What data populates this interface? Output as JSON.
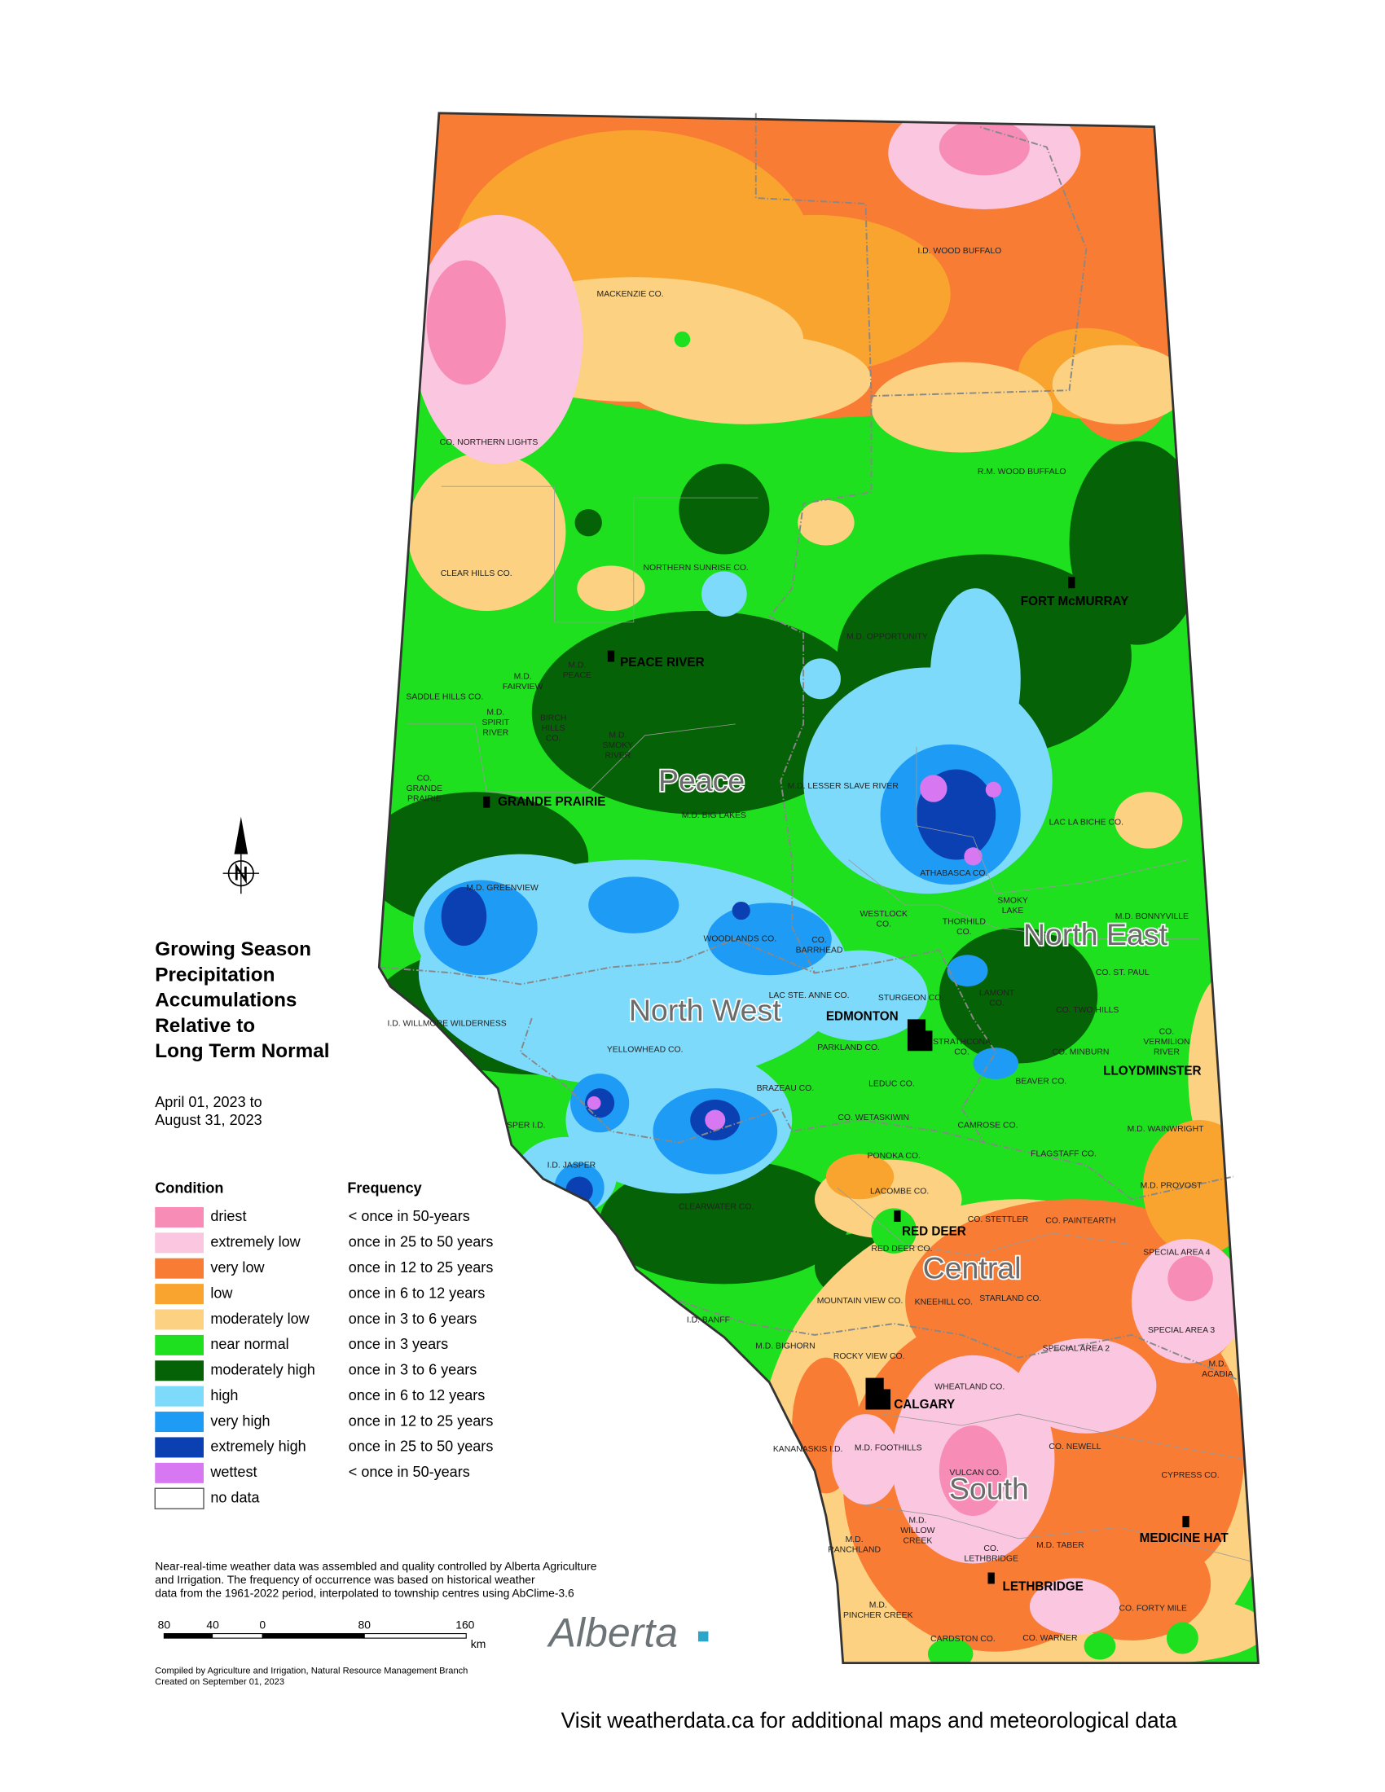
{
  "title_lines": [
    "Growing Season",
    "Precipitation",
    "Accumulations",
    "Relative to",
    "Long Term Normal"
  ],
  "date_lines": [
    "April 01, 2023 to",
    "August 31, 2023"
  ],
  "legend": {
    "condition_header": "Condition",
    "frequency_header": "Frequency",
    "items": [
      {
        "condition": "driest",
        "frequency": "< once in 50-years",
        "color": "#f78cb6"
      },
      {
        "condition": "extremely low",
        "frequency": "once in 25 to 50 years",
        "color": "#fbc6df"
      },
      {
        "condition": "very low",
        "frequency": "once in 12 to 25 years",
        "color": "#f97c34"
      },
      {
        "condition": "low",
        "frequency": "once in 6 to 12 years",
        "color": "#f9a42e"
      },
      {
        "condition": "moderately low",
        "frequency": "once in 3 to 6 years",
        "color": "#fcd282"
      },
      {
        "condition": "near normal",
        "frequency": "once in 3 years",
        "color": "#1ee01e"
      },
      {
        "condition": "moderately high",
        "frequency": "once in 3 to 6 years",
        "color": "#066206"
      },
      {
        "condition": "high",
        "frequency": "once in 6 to 12 years",
        "color": "#7ddafb"
      },
      {
        "condition": "very high",
        "frequency": "once in 12 to 25 years",
        "color": "#1e9cf5"
      },
      {
        "condition": "extremely high",
        "frequency": "once in 25 to 50 years",
        "color": "#0b40b2"
      },
      {
        "condition": "wettest",
        "frequency": "< once in 50-years",
        "color": "#d877f2"
      },
      {
        "condition": "no data",
        "frequency": null,
        "color": "#ffffff"
      }
    ]
  },
  "notes": [
    "Near-real-time weather data was assembled and quality controlled by Alberta Agriculture",
    "and Irrigation. The frequency of occurrence was based on historical weather",
    "data from the 1961-2022 period, interpolated to township centres using AbClime-3.6"
  ],
  "scale_bar": {
    "labels": [
      "80",
      "40",
      "0",
      "80",
      "160"
    ],
    "unit": "km"
  },
  "credits": [
    "Compiled by Agriculture and Irrigation, Natural Resource Management Branch",
    "Created on September 01, 2023"
  ],
  "logo": "Alberta",
  "footer": "Visit weatherdata.ca for additional maps and meteorological data",
  "regions": [
    "Peace",
    "North West",
    "North East",
    "Central",
    "South"
  ],
  "cities": [
    "PEACE RIVER",
    "GRANDE PRAIRIE",
    "FORT McMURRAY",
    "EDMONTON",
    "LLOYDMINSTER",
    "RED DEER",
    "CALGARY",
    "MEDICINE HAT",
    "LETHBRIDGE"
  ],
  "counties": [
    [
      "I.D. WOOD BUFFALO"
    ],
    [
      "MACKENZIE CO."
    ],
    [
      "CO. NORTHERN LIGHTS"
    ],
    [
      "R.M. WOOD BUFFALO"
    ],
    [
      "CLEAR HILLS CO."
    ],
    [
      "NORTHERN SUNRISE CO."
    ],
    [
      "M.D. OPPORTUNITY"
    ],
    [
      "M.D.",
      "PEACE"
    ],
    [
      "M.D.",
      "FAIRVIEW"
    ],
    [
      "SADDLE HILLS CO."
    ],
    [
      "M.D.",
      "SPIRIT",
      "RIVER"
    ],
    [
      "BIRCH",
      "HILLS",
      "CO."
    ],
    [
      "M.D.",
      "SMOKY",
      "RIVER"
    ],
    [
      "CO.",
      "GRANDE",
      "PRAIRIE"
    ],
    [
      "M.D. LESSER SLAVE RIVER"
    ],
    [
      "M.D. BIG LAKES"
    ],
    [
      "LAC LA BICHE CO."
    ],
    [
      "ATHABASCA CO."
    ],
    [
      "M.D. GREENVIEW"
    ],
    [
      "SMOKY",
      "LAKE"
    ],
    [
      "M.D. BONNYVILLE"
    ],
    [
      "WESTLOCK",
      "CO."
    ],
    [
      "THORHILD",
      "CO."
    ],
    [
      "WOODLANDS CO."
    ],
    [
      "CO.",
      "BARRHEAD"
    ],
    [
      "CO. ST. PAUL"
    ],
    [
      "LAC STE. ANNE CO."
    ],
    [
      "STURGEON CO."
    ],
    [
      "LAMONT",
      "CO."
    ],
    [
      "CO. TWO HILLS"
    ],
    [
      "I.D. WILLMORE WILDERNESS"
    ],
    [
      "YELLOWHEAD CO."
    ],
    [
      "PARKLAND CO."
    ],
    [
      "STRATHCONA",
      "CO."
    ],
    [
      "CO. MINBURN"
    ],
    [
      "CO.",
      "VERMILION",
      "RIVER"
    ],
    [
      "LEDUC CO."
    ],
    [
      "BEAVER CO."
    ],
    [
      "BRAZEAU CO."
    ],
    [
      "SPER I.D."
    ],
    [
      "CO. WETASKIWIN"
    ],
    [
      "CAMROSE CO."
    ],
    [
      "M.D. WAINWRIGHT"
    ],
    [
      "PONOKA CO."
    ],
    [
      "FLAGSTAFF CO."
    ],
    [
      "I.D. JASPER"
    ],
    [
      "M.D. PROVOST"
    ],
    [
      "LACOMBE CO."
    ],
    [
      "CLEARWATER CO."
    ],
    [
      "CO. STETTLER"
    ],
    [
      "CO. PAINTEARTH"
    ],
    [
      "RED DEER CO."
    ],
    [
      "SPECIAL AREA 4"
    ],
    [
      "MOUNTAIN VIEW CO."
    ],
    [
      "KNEEHILL CO."
    ],
    [
      "STARLAND CO."
    ],
    [
      "I.D. BANFF"
    ],
    [
      "SPECIAL AREA 3"
    ],
    [
      "M.D. BIGHORN"
    ],
    [
      "SPECIAL AREA 2"
    ],
    [
      "ROCKY VIEW CO."
    ],
    [
      "M.D.",
      "ACADIA"
    ],
    [
      "WHEATLAND CO."
    ],
    [
      "KANANASKIS I.D."
    ],
    [
      "M.D. FOOTHILLS"
    ],
    [
      "CO. NEWELL"
    ],
    [
      "VULCAN CO."
    ],
    [
      "CYPRESS CO."
    ],
    [
      "M.D.",
      "WILLOW",
      "CREEK"
    ],
    [
      "M.D.",
      "RANCHLAND"
    ],
    [
      "M.D. TABER"
    ],
    [
      "CO.",
      "LETHBRIDGE"
    ],
    [
      "CO. FORTY MILE"
    ],
    [
      "M.D.",
      "PINCHER CREEK"
    ],
    [
      "CARDSTON CO."
    ],
    [
      "CO. WARNER"
    ]
  ]
}
